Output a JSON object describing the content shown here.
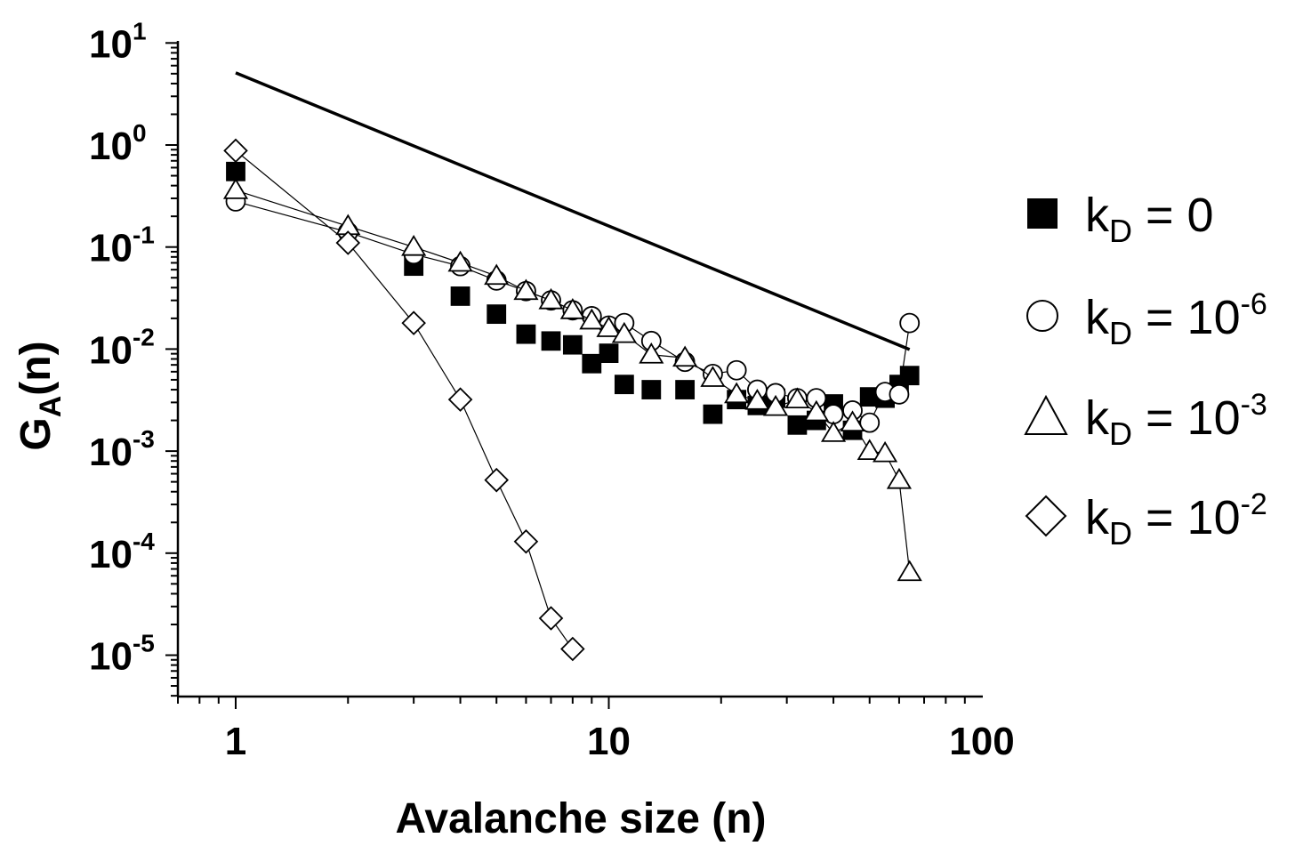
{
  "chart_data": {
    "type": "scatter",
    "xscale": "log",
    "yscale": "log",
    "xlim": [
      0.7,
      100
    ],
    "ylim": [
      3.5e-06,
      15
    ],
    "xlabel": "Avalanche size (n)",
    "ylabel": {
      "base": "G",
      "sub": "A",
      "rest": "(n)"
    },
    "x_ticks": [
      {
        "value": 1,
        "label": "1"
      },
      {
        "value": 10,
        "label": "10"
      },
      {
        "value": 100,
        "label": "100"
      }
    ],
    "y_ticks": [
      {
        "value": 10,
        "base": "10",
        "exp": "1"
      },
      {
        "value": 1,
        "base": "10",
        "exp": "0"
      },
      {
        "value": 0.1,
        "base": "10",
        "exp": "-1"
      },
      {
        "value": 0.01,
        "base": "10",
        "exp": "-2"
      },
      {
        "value": 0.001,
        "base": "10",
        "exp": "-3"
      },
      {
        "value": 0.0001,
        "base": "10",
        "exp": "-4"
      },
      {
        "value": 1e-05,
        "base": "10",
        "exp": "-5"
      }
    ],
    "reference_line": {
      "x": [
        1,
        64
      ],
      "y": [
        5.1,
        0.0099
      ],
      "color": "#000000"
    },
    "legend_position": "right",
    "series": [
      {
        "name": "k_D = 0",
        "legend": {
          "k": "k",
          "sub": "D",
          "eq": " = 0",
          "sup": ""
        },
        "marker": "square",
        "filled": true,
        "connected": false,
        "x": [
          1,
          3,
          4,
          5,
          6,
          7,
          8,
          9,
          10,
          11,
          13,
          16,
          19,
          22,
          25,
          28,
          32,
          36,
          40,
          45,
          50,
          55,
          60,
          64
        ],
        "y": [
          0.55,
          0.065,
          0.033,
          0.022,
          0.014,
          0.012,
          0.011,
          0.0072,
          0.0091,
          0.0045,
          0.004,
          0.004,
          0.0023,
          0.0032,
          0.0028,
          0.0033,
          0.0018,
          0.002,
          0.0029,
          0.0016,
          0.0034,
          0.0033,
          0.0045,
          0.0055
        ]
      },
      {
        "name": "k_D = 10^-6",
        "legend": {
          "k": "k",
          "sub": "D",
          "eq": " = 10",
          "sup": "-6"
        },
        "marker": "circle",
        "filled": false,
        "connected": true,
        "x": [
          1,
          2,
          3,
          4,
          5,
          6,
          7,
          8,
          9,
          10,
          11,
          13,
          16,
          19,
          22,
          25,
          28,
          32,
          36,
          40,
          45,
          50,
          55,
          60,
          64
        ],
        "y": [
          0.28,
          0.14,
          0.085,
          0.065,
          0.047,
          0.037,
          0.03,
          0.024,
          0.021,
          0.017,
          0.018,
          0.012,
          0.0075,
          0.0057,
          0.0062,
          0.004,
          0.0037,
          0.0033,
          0.0033,
          0.0023,
          0.0025,
          0.0019,
          0.0038,
          0.0036,
          0.018
        ]
      },
      {
        "name": "k_D = 10^-3",
        "legend": {
          "k": "k",
          "sub": "D",
          "eq": " = 10",
          "sup": "-3"
        },
        "marker": "triangle",
        "filled": false,
        "connected": true,
        "x": [
          1,
          2,
          3,
          4,
          5,
          6,
          7,
          8,
          9,
          10,
          11,
          13,
          16,
          19,
          22,
          25,
          28,
          32,
          36,
          40,
          45,
          50,
          55,
          60,
          64
        ],
        "y": [
          0.36,
          0.16,
          0.1,
          0.07,
          0.052,
          0.037,
          0.03,
          0.024,
          0.019,
          0.016,
          0.014,
          0.0088,
          0.0082,
          0.0052,
          0.0036,
          0.0031,
          0.0027,
          0.0032,
          0.0024,
          0.0015,
          0.0019,
          0.001,
          0.00095,
          0.00052,
          6.5e-05
        ]
      },
      {
        "name": "k_D = 10^-2",
        "legend": {
          "k": "k",
          "sub": "D",
          "eq": " = 10",
          "sup": "-2"
        },
        "marker": "diamond",
        "filled": false,
        "connected": true,
        "x": [
          1,
          2,
          3,
          4,
          5,
          6,
          7,
          8
        ],
        "y": [
          0.88,
          0.11,
          0.018,
          0.0032,
          0.00052,
          0.00013,
          2.3e-05,
          1.15e-05
        ]
      }
    ]
  }
}
